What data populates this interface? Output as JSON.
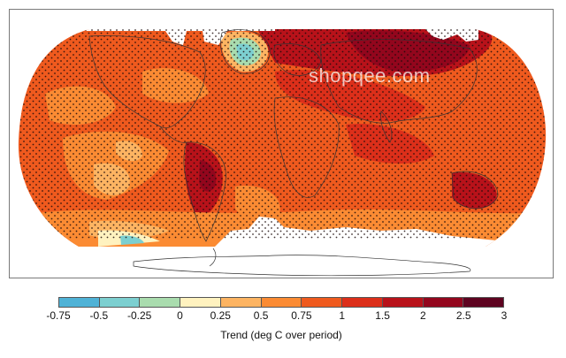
{
  "map": {
    "projection": "robinson",
    "stippling": true,
    "coastline_color": "#333333",
    "no_data_color": "#ffffff"
  },
  "watermark": {
    "text": "shopqee.com"
  },
  "legend": {
    "label": "Trend (deg C over period)",
    "ticks": [
      "-0.75",
      "-0.5",
      "-0.25",
      "0",
      "0.25",
      "0.5",
      "0.75",
      "1",
      "1.5",
      "2",
      "2.5",
      "3"
    ],
    "colors": [
      "#4fb2d6",
      "#7ccfd0",
      "#a9dcae",
      "#fff2bf",
      "#fdb462",
      "#fb8b33",
      "#ef5a1e",
      "#dc2f1a",
      "#b8121a",
      "#93061d",
      "#5e0320"
    ]
  }
}
